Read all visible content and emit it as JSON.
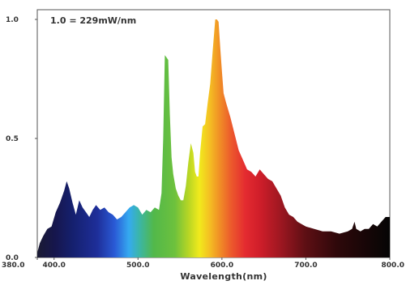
{
  "chart_data": {
    "type": "area",
    "annotation": "1.0 = 229mW/nm",
    "xlabel": "Wavelength(nm)",
    "ylabel": "",
    "xlim": [
      380,
      800
    ],
    "ylim": [
      0,
      1.0
    ],
    "x_ticks": [
      {
        "value": 380,
        "label": "380.0"
      },
      {
        "value": 400,
        "label": "400.0"
      },
      {
        "value": 500,
        "label": "500.0"
      },
      {
        "value": 600,
        "label": "600.0"
      },
      {
        "value": 700,
        "label": "700.0"
      },
      {
        "value": 800,
        "label": "800.0"
      }
    ],
    "y_ticks": [
      {
        "value": 0.0,
        "label": "0.0"
      },
      {
        "value": 0.5,
        "label": "0.5"
      },
      {
        "value": 1.0,
        "label": "1.0"
      }
    ],
    "grid": false,
    "fill": "visible-spectrum gradient",
    "series": [
      {
        "x": [
          380,
          383,
          387,
          392,
          397,
          402,
          407,
          412,
          415,
          418,
          422,
          426,
          430,
          434,
          438,
          442,
          446,
          450,
          455,
          460,
          465,
          470,
          475,
          480,
          485,
          490,
          495,
          500,
          505,
          510,
          515,
          520,
          525,
          528,
          530,
          532,
          534,
          536,
          538,
          540,
          542,
          545,
          548,
          551,
          554,
          557,
          560,
          563,
          566,
          568,
          570,
          572,
          574,
          577,
          580,
          583,
          586,
          589,
          592,
          594,
          596,
          598,
          600,
          602,
          605,
          610,
          615,
          620,
          625,
          630,
          635,
          640,
          645,
          650,
          655,
          660,
          665,
          670,
          675,
          680,
          685,
          690,
          700,
          710,
          720,
          730,
          740,
          750,
          755,
          758,
          760,
          765,
          770,
          775,
          780,
          785,
          790,
          795,
          800
        ],
        "y": [
          0.02,
          0.06,
          0.09,
          0.12,
          0.13,
          0.19,
          0.23,
          0.28,
          0.32,
          0.29,
          0.23,
          0.18,
          0.24,
          0.21,
          0.19,
          0.17,
          0.2,
          0.22,
          0.2,
          0.21,
          0.19,
          0.18,
          0.16,
          0.17,
          0.19,
          0.21,
          0.22,
          0.21,
          0.18,
          0.2,
          0.19,
          0.21,
          0.2,
          0.27,
          0.5,
          0.85,
          0.84,
          0.83,
          0.6,
          0.42,
          0.35,
          0.29,
          0.26,
          0.24,
          0.24,
          0.3,
          0.4,
          0.48,
          0.44,
          0.36,
          0.34,
          0.34,
          0.44,
          0.55,
          0.56,
          0.65,
          0.73,
          0.87,
          1.0,
          1.0,
          0.99,
          0.88,
          0.78,
          0.69,
          0.65,
          0.59,
          0.52,
          0.45,
          0.41,
          0.37,
          0.36,
          0.34,
          0.37,
          0.35,
          0.33,
          0.32,
          0.29,
          0.26,
          0.21,
          0.18,
          0.17,
          0.15,
          0.13,
          0.12,
          0.11,
          0.11,
          0.1,
          0.11,
          0.12,
          0.15,
          0.12,
          0.11,
          0.12,
          0.12,
          0.14,
          0.13,
          0.15,
          0.17,
          0.17
        ]
      }
    ]
  }
}
